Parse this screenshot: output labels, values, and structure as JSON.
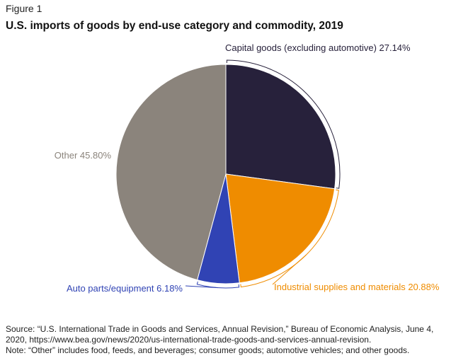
{
  "figure_label": "Figure 1",
  "chart_data": {
    "type": "pie",
    "title": "U.S. imports of goods by end-use category and commodity, 2019",
    "slices": [
      {
        "label": "Capital goods (excluding automotive)",
        "value": 27.14,
        "display": "27.14%",
        "color": "#27213b"
      },
      {
        "label": "Industrial supplies and materials",
        "value": 20.88,
        "display": "20.88%",
        "color": "#ef8c00"
      },
      {
        "label": "Auto parts/equipment",
        "value": 6.18,
        "display": "6.18%",
        "color": "#3043b4"
      },
      {
        "label": "Other",
        "value": 45.8,
        "display": "45.80%",
        "color": "#8b847c"
      }
    ]
  },
  "source_text": "Source: “U.S. International Trade in Goods and Services, Annual Revision,” Bureau of Economic Analysis, June 4, 2020, https://www.bea.gov/news/2020/us-international-trade-goods-and-services-annual-revision.",
  "note_text": "Note: “Other” includes food, feeds, and beverages; consumer goods; automotive vehicles; and other goods."
}
